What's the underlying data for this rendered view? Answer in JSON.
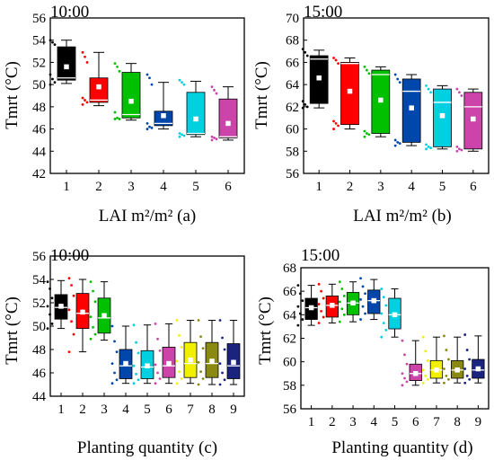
{
  "chart_data": [
    {
      "id": "a",
      "type": "box",
      "title": "10:00",
      "xlabel": "LAI m²/m² (a)",
      "ylabel": "Tmrt (°C)",
      "ylim": [
        42,
        56
      ],
      "yticks": [
        42,
        44,
        46,
        48,
        50,
        52,
        54,
        56
      ],
      "categories": [
        "1",
        "2",
        "3",
        "4",
        "5",
        "6"
      ],
      "boxes": [
        {
          "color": "#000000",
          "whisker_low": 50.1,
          "q1": 50.4,
          "median": 50.6,
          "q3": 53.4,
          "whisker_high": 54.0,
          "mean": 51.6,
          "points": [
            54.0,
            53.8,
            53.6,
            50.9,
            50.5,
            50.2,
            50.0
          ]
        },
        {
          "color": "#ff0000",
          "whisker_low": 48.1,
          "q1": 48.4,
          "median": 48.6,
          "q3": 50.6,
          "whisker_high": 52.9,
          "mean": 49.8,
          "points": [
            52.9,
            52.5,
            52.0,
            48.8,
            48.6,
            48.4,
            48.2
          ]
        },
        {
          "color": "#00c000",
          "whisker_low": 46.8,
          "q1": 47.0,
          "median": 47.3,
          "q3": 51.1,
          "whisker_high": 51.9,
          "mean": 48.5,
          "points": [
            51.9,
            51.6,
            51.2,
            47.5,
            47.0,
            46.9,
            46.9
          ]
        },
        {
          "color": "#0047ab",
          "whisker_low": 46.0,
          "q1": 46.3,
          "median": 46.5,
          "q3": 47.6,
          "whisker_high": 50.2,
          "mean": 47.2,
          "points": [
            50.9,
            50.6,
            50.0,
            46.5,
            46.2,
            46.1,
            46.0
          ]
        },
        {
          "color": "#00d0e0",
          "whisker_low": 45.3,
          "q1": 45.5,
          "median": 45.6,
          "q3": 49.3,
          "whisker_high": 50.3,
          "mean": 46.9,
          "points": [
            50.4,
            50.2,
            50.0,
            45.6,
            45.5,
            45.4,
            45.3
          ]
        },
        {
          "color": "#cc44aa",
          "whisker_low": 45.0,
          "q1": 45.2,
          "median": 45.3,
          "q3": 48.7,
          "whisker_high": 49.8,
          "mean": 46.5,
          "points": [
            49.8,
            49.5,
            49.2,
            45.3,
            45.2,
            45.1,
            45.0
          ]
        }
      ]
    },
    {
      "id": "b",
      "type": "box",
      "title": "15:00",
      "xlabel": "LAI m²/m² (b)",
      "ylabel": "Tmrt (°C)",
      "ylim": [
        56,
        70
      ],
      "yticks": [
        56,
        58,
        60,
        62,
        64,
        66,
        68,
        70
      ],
      "categories": [
        "1",
        "2",
        "3",
        "4",
        "5",
        "6"
      ],
      "boxes": [
        {
          "color": "#000000",
          "whisker_low": 61.9,
          "q1": 62.3,
          "median": 66.3,
          "q3": 66.6,
          "whisker_high": 67.1,
          "mean": 64.6,
          "points": [
            67.2,
            66.9,
            66.6,
            62.5,
            62.2,
            62.0,
            61.9
          ]
        },
        {
          "color": "#ff0000",
          "whisker_low": 60.0,
          "q1": 60.4,
          "median": 65.9,
          "q3": 66.0,
          "whisker_high": 66.4,
          "mean": 63.4,
          "points": [
            66.4,
            66.2,
            65.9,
            60.7,
            60.5,
            60.3,
            60.0
          ]
        },
        {
          "color": "#00c000",
          "whisker_low": 59.3,
          "q1": 59.6,
          "median": 64.9,
          "q3": 65.3,
          "whisker_high": 65.6,
          "mean": 62.6,
          "points": [
            65.6,
            65.3,
            65.0,
            59.8,
            59.6,
            59.5,
            59.3
          ]
        },
        {
          "color": "#0047ab",
          "whisker_low": 58.5,
          "q1": 58.8,
          "median": 63.4,
          "q3": 64.5,
          "whisker_high": 64.9,
          "mean": 61.9,
          "points": [
            64.9,
            64.5,
            64.2,
            59.0,
            58.8,
            58.7,
            58.5
          ]
        },
        {
          "color": "#00d0e0",
          "whisker_low": 58.2,
          "q1": 58.4,
          "median": 62.4,
          "q3": 63.6,
          "whisker_high": 63.9,
          "mean": 61.2,
          "points": [
            63.9,
            63.6,
            63.3,
            58.6,
            58.4,
            58.3,
            58.2
          ]
        },
        {
          "color": "#cc44aa",
          "whisker_low": 58.0,
          "q1": 58.2,
          "median": 62.0,
          "q3": 63.3,
          "whisker_high": 63.6,
          "mean": 60.9,
          "points": [
            63.6,
            63.3,
            63.0,
            58.4,
            58.2,
            58.1,
            58.0
          ]
        }
      ]
    },
    {
      "id": "c",
      "type": "box",
      "title": "10:00",
      "xlabel": "Planting quantity (c)",
      "ylabel": "Tmrt (°C)",
      "ylim": [
        44,
        56
      ],
      "yticks": [
        44,
        46,
        48,
        50,
        52,
        54,
        56
      ],
      "categories": [
        "1",
        "2",
        "3",
        "4",
        "5",
        "6",
        "7",
        "8",
        "9"
      ],
      "boxes": [
        {
          "color": "#000000",
          "whisker_low": 49.8,
          "q1": 50.6,
          "median": 51.6,
          "q3": 52.7,
          "whisker_high": 53.9,
          "mean": 51.7,
          "points": [
            53.8,
            53.2,
            52.4,
            51.7,
            51.0,
            50.2,
            49.8
          ]
        },
        {
          "color": "#ff0000",
          "whisker_low": 47.8,
          "q1": 49.8,
          "median": 51.1,
          "q3": 52.8,
          "whisker_high": 54.0,
          "mean": 51.2,
          "points": [
            54.1,
            53.5,
            52.6,
            51.4,
            50.4,
            49.3,
            47.8
          ]
        },
        {
          "color": "#00c000",
          "whisker_low": 48.8,
          "q1": 49.4,
          "median": 50.7,
          "q3": 52.4,
          "whisker_high": 53.8,
          "mean": 50.9,
          "points": [
            53.8,
            53.0,
            52.1,
            50.8,
            49.9,
            49.3,
            48.9
          ]
        },
        {
          "color": "#0047ab",
          "whisker_low": 45.1,
          "q1": 45.5,
          "median": 46.6,
          "q3": 48.0,
          "whisker_high": 50.0,
          "mean": 46.8,
          "points": [
            50.0,
            48.7,
            47.8,
            46.8,
            46.0,
            45.4,
            45.1
          ]
        },
        {
          "color": "#00d0e0",
          "whisker_low": 45.1,
          "q1": 45.5,
          "median": 46.5,
          "q3": 47.9,
          "whisker_high": 50.1,
          "mean": 46.6,
          "points": [
            50.1,
            48.6,
            47.7,
            46.6,
            45.9,
            45.4,
            45.1
          ]
        },
        {
          "color": "#cc44aa",
          "whisker_low": 45.1,
          "q1": 45.6,
          "median": 46.6,
          "q3": 48.2,
          "whisker_high": 50.2,
          "mean": 46.8,
          "points": [
            50.2,
            48.9,
            47.9,
            46.7,
            46.0,
            45.5,
            45.1
          ]
        },
        {
          "color": "#f0f000",
          "whisker_low": 45.1,
          "q1": 45.6,
          "median": 46.8,
          "q3": 48.6,
          "whisker_high": 50.5,
          "mean": 47.1,
          "points": [
            50.5,
            49.2,
            48.2,
            47.0,
            46.1,
            45.5,
            45.1
          ]
        },
        {
          "color": "#8a8a10",
          "whisker_low": 45.0,
          "q1": 45.6,
          "median": 46.8,
          "q3": 48.6,
          "whisker_high": 50.5,
          "mean": 47.0,
          "points": [
            50.5,
            49.1,
            48.1,
            46.9,
            46.1,
            45.5,
            45.0
          ]
        },
        {
          "color": "#1a237e",
          "whisker_low": 45.0,
          "q1": 45.5,
          "median": 46.6,
          "q3": 48.5,
          "whisker_high": 50.5,
          "mean": 46.9,
          "points": [
            50.5,
            49.0,
            48.0,
            46.8,
            46.0,
            45.4,
            45.0
          ]
        }
      ]
    },
    {
      "id": "d",
      "type": "box",
      "title": "15:00",
      "xlabel": "Planting quantity (d)",
      "ylabel": "Tmrt (°C)",
      "ylim": [
        56,
        68
      ],
      "yticks": [
        56,
        58,
        60,
        62,
        64,
        66,
        68
      ],
      "categories": [
        "1",
        "2",
        "3",
        "4",
        "5",
        "6",
        "7",
        "8",
        "9"
      ],
      "boxes": [
        {
          "color": "#000000",
          "whisker_low": 63.1,
          "q1": 63.6,
          "median": 64.6,
          "q3": 65.4,
          "whisker_high": 66.5,
          "mean": 64.6,
          "points": [
            66.5,
            65.8,
            65.2,
            64.7,
            64.1,
            63.6,
            63.1
          ]
        },
        {
          "color": "#ff0000",
          "whisker_low": 63.3,
          "q1": 63.8,
          "median": 64.8,
          "q3": 65.6,
          "whisker_high": 66.6,
          "mean": 64.8,
          "points": [
            66.6,
            66.0,
            65.4,
            64.9,
            64.3,
            63.8,
            63.3
          ]
        },
        {
          "color": "#00c000",
          "whisker_low": 63.4,
          "q1": 64.0,
          "median": 65.0,
          "q3": 65.9,
          "whisker_high": 66.8,
          "mean": 65.0,
          "points": [
            66.8,
            66.2,
            65.6,
            65.1,
            64.5,
            64.0,
            63.4
          ]
        },
        {
          "color": "#0047ab",
          "whisker_low": 63.6,
          "q1": 64.1,
          "median": 65.2,
          "q3": 66.1,
          "whisker_high": 67.0,
          "mean": 65.2,
          "points": [
            67.1,
            66.4,
            65.8,
            65.3,
            64.7,
            64.1,
            63.6
          ]
        },
        {
          "color": "#00d0e0",
          "whisker_low": 62.1,
          "q1": 62.8,
          "median": 64.0,
          "q3": 65.4,
          "whisker_high": 66.2,
          "mean": 64.0,
          "points": [
            66.2,
            65.5,
            64.8,
            64.1,
            63.3,
            62.7,
            62.1
          ]
        },
        {
          "color": "#cc44aa",
          "whisker_low": 58.0,
          "q1": 58.4,
          "median": 59.0,
          "q3": 59.8,
          "whisker_high": 61.8,
          "mean": 59.0,
          "points": [
            61.8,
            60.6,
            59.8,
            59.0,
            58.6,
            58.3,
            58.0
          ]
        },
        {
          "color": "#f0f000",
          "whisker_low": 58.2,
          "q1": 58.6,
          "median": 59.3,
          "q3": 60.1,
          "whisker_high": 62.1,
          "mean": 59.3,
          "points": [
            62.1,
            60.9,
            60.1,
            59.3,
            58.8,
            58.5,
            58.2
          ]
        },
        {
          "color": "#8a8a10",
          "whisker_low": 58.2,
          "q1": 58.6,
          "median": 59.3,
          "q3": 60.1,
          "whisker_high": 62.1,
          "mean": 59.3,
          "points": [
            62.2,
            61.0,
            60.2,
            59.4,
            58.8,
            58.5,
            58.2
          ]
        },
        {
          "color": "#1a237e",
          "whisker_low": 58.2,
          "q1": 58.6,
          "median": 59.3,
          "q3": 60.2,
          "whisker_high": 62.2,
          "mean": 59.4,
          "points": [
            62.3,
            61.0,
            60.2,
            59.4,
            58.8,
            58.5,
            58.2
          ]
        }
      ]
    }
  ]
}
